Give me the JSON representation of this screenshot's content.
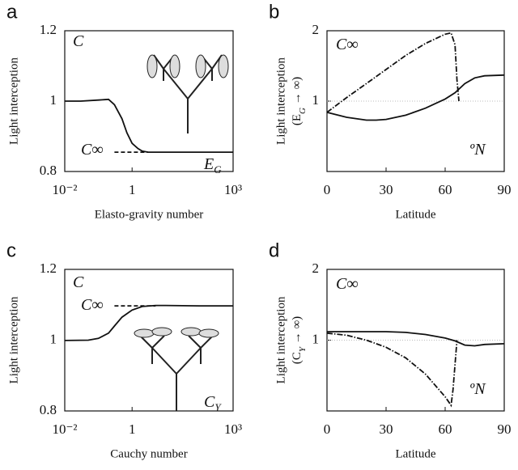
{
  "chart_data": [
    {
      "type": "line",
      "panel": "a",
      "xscale": "log",
      "xlabel": "Elasto-gravity number",
      "ylabel": "Light interception",
      "xlim": [
        0.01,
        1000
      ],
      "xticks": [
        {
          "value": 0.01,
          "label": "10⁻²"
        },
        1,
        {
          "value": 1000,
          "label": "10³"
        }
      ],
      "ylim": [
        0.8,
        1.2
      ],
      "yticks": [
        0.8,
        1,
        1.2
      ],
      "annotations": [
        {
          "text": "C"
        },
        {
          "text": "C∞"
        },
        {
          "text": "E",
          "sub": "G"
        }
      ],
      "series": [
        {
          "color": "#111111",
          "style": "solid",
          "x": [
            0.01,
            0.03,
            0.1,
            0.2,
            0.3,
            0.5,
            0.7,
            1,
            1.5,
            2,
            3,
            5,
            10,
            100,
            1000
          ],
          "values": [
            1.0,
            1.0,
            1.003,
            1.005,
            0.99,
            0.95,
            0.91,
            0.88,
            0.865,
            0.858,
            0.855,
            0.855,
            0.855,
            0.855,
            0.855
          ]
        },
        {
          "color": "#111111",
          "style": "dashed",
          "x": [
            0.3,
            3
          ],
          "values": [
            0.855,
            0.855
          ]
        }
      ]
    },
    {
      "type": "line",
      "panel": "b",
      "xlabel": "Latitude",
      "ylabel": "Light interception",
      "ylabel2": {
        "before": "(E",
        "sub": "G",
        "after": " → ∞)"
      },
      "xlim": [
        0,
        90
      ],
      "xticks": [
        0,
        30,
        60,
        90
      ],
      "ylim": [
        0,
        2
      ],
      "yticks": [
        1,
        2
      ],
      "reference_line": 1,
      "annotations": [
        {
          "text": "C∞"
        },
        {
          "text": "ºN"
        }
      ],
      "series": [
        {
          "color": "#111111",
          "style": "solid",
          "x": [
            0,
            10,
            20,
            25,
            30,
            40,
            50,
            60,
            65,
            70,
            75,
            80,
            90
          ],
          "values": [
            0.84,
            0.77,
            0.73,
            0.73,
            0.74,
            0.8,
            0.9,
            1.03,
            1.12,
            1.25,
            1.33,
            1.36,
            1.37
          ]
        },
        {
          "color": "#111111",
          "style": "dashdot",
          "x": [
            0,
            10,
            20,
            30,
            40,
            50,
            60,
            63,
            65,
            66,
            67
          ],
          "values": [
            0.84,
            1.05,
            1.25,
            1.45,
            1.65,
            1.82,
            1.95,
            1.97,
            1.8,
            1.3,
            1.0
          ]
        }
      ]
    },
    {
      "type": "line",
      "panel": "c",
      "xscale": "log",
      "xlabel": "Cauchy number",
      "ylabel": "Light interception",
      "xlim": [
        0.01,
        1000
      ],
      "xticks": [
        {
          "value": 0.01,
          "label": "10⁻²"
        },
        1,
        {
          "value": 1000,
          "label": "10³"
        }
      ],
      "ylim": [
        0.8,
        1.2
      ],
      "yticks": [
        0.8,
        1,
        1.2
      ],
      "annotations": [
        {
          "text": "C"
        },
        {
          "text": "C∞"
        },
        {
          "text": "C",
          "sub": "Y"
        }
      ],
      "series": [
        {
          "color": "#111111",
          "style": "solid",
          "x": [
            0.01,
            0.05,
            0.1,
            0.2,
            0.3,
            0.5,
            1,
            2,
            5,
            10,
            100,
            1000
          ],
          "values": [
            0.999,
            1.0,
            1.005,
            1.02,
            1.04,
            1.065,
            1.085,
            1.095,
            1.098,
            1.098,
            1.097,
            1.097
          ]
        },
        {
          "color": "#111111",
          "style": "dashed",
          "x": [
            0.3,
            5
          ],
          "values": [
            1.097,
            1.097
          ]
        }
      ]
    },
    {
      "type": "line",
      "panel": "d",
      "xlabel": "Latitude",
      "ylabel": "Light interception",
      "ylabel2": {
        "before": "(C",
        "sub": "Y",
        "after": " → ∞)"
      },
      "xlim": [
        0,
        90
      ],
      "xticks": [
        0,
        30,
        60,
        90
      ],
      "ylim": [
        0,
        2
      ],
      "yticks": [
        1,
        2
      ],
      "reference_line": 1,
      "annotations": [
        {
          "text": "C∞"
        },
        {
          "text": "ºN"
        }
      ],
      "series": [
        {
          "color": "#111111",
          "style": "solid",
          "x": [
            0,
            10,
            20,
            30,
            40,
            50,
            60,
            65,
            70,
            75,
            80,
            90
          ],
          "values": [
            1.12,
            1.12,
            1.12,
            1.12,
            1.11,
            1.08,
            1.03,
            0.99,
            0.93,
            0.92,
            0.94,
            0.95
          ]
        },
        {
          "color": "#111111",
          "style": "dashdot",
          "x": [
            0,
            10,
            20,
            30,
            40,
            50,
            60,
            63,
            64,
            66
          ],
          "values": [
            1.1,
            1.07,
            1.0,
            0.9,
            0.75,
            0.52,
            0.2,
            0.08,
            0.3,
            1.0
          ]
        }
      ]
    }
  ]
}
